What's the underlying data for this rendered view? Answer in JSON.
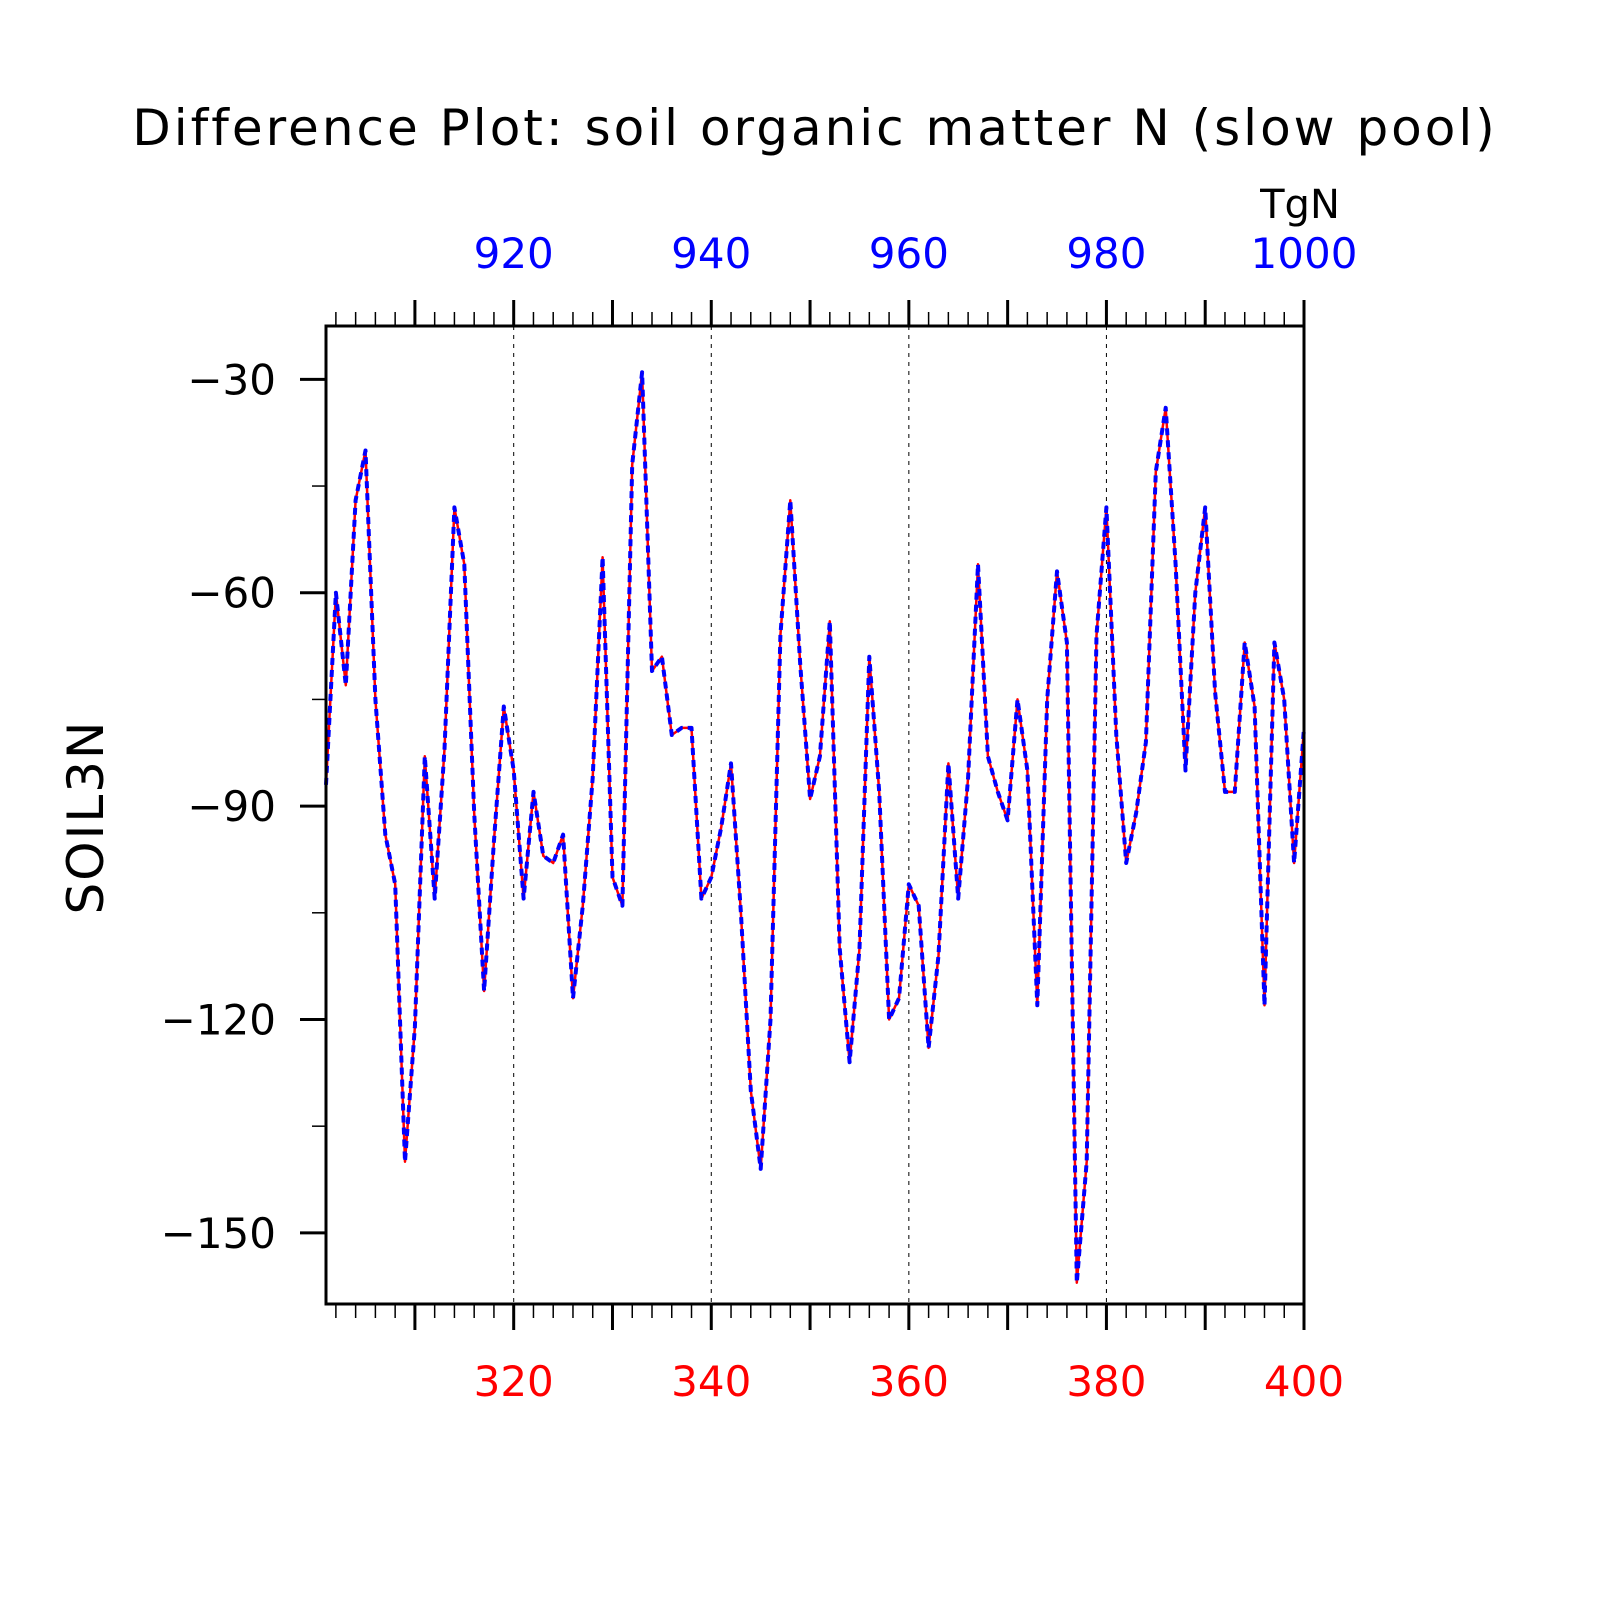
{
  "chart_data": {
    "type": "line",
    "title": "Difference Plot: soil organic matter N (slow pool)",
    "units": "TgN",
    "ylabel": "SOIL3N",
    "xlabel": "",
    "xlim": [
      301,
      400
    ],
    "ylim": [
      -160,
      -22.5
    ],
    "top_xlim": [
      901,
      1000
    ],
    "yticks": [
      -30,
      -60,
      -90,
      -120,
      -150
    ],
    "ytick_labels": [
      "−30",
      "−60",
      "−90",
      "−120",
      "−150"
    ],
    "xticks": [
      320,
      340,
      360,
      380,
      400
    ],
    "xtick_labels": [
      "320",
      "340",
      "360",
      "380",
      "400"
    ],
    "top_xticks": [
      920,
      940,
      960,
      980,
      1000
    ],
    "top_xtick_labels": [
      "920",
      "940",
      "960",
      "980",
      "1000"
    ],
    "grid": "vertical dashed at major x ticks",
    "colors": {
      "bottom_axis": "#ff0000",
      "top_axis": "#0000ff",
      "series_solid": "#ff0000",
      "series_dashed": "#0000ff"
    },
    "x": [
      301,
      302,
      303,
      304,
      305,
      306,
      307,
      308,
      309,
      310,
      311,
      312,
      313,
      314,
      315,
      316,
      317,
      318,
      319,
      320,
      321,
      322,
      323,
      324,
      325,
      326,
      327,
      328,
      329,
      330,
      331,
      332,
      333,
      334,
      335,
      336,
      337,
      338,
      339,
      340,
      341,
      342,
      343,
      344,
      345,
      346,
      347,
      348,
      349,
      350,
      351,
      352,
      353,
      354,
      355,
      356,
      357,
      358,
      359,
      360,
      361,
      362,
      363,
      364,
      365,
      366,
      367,
      368,
      369,
      370,
      371,
      372,
      373,
      374,
      375,
      376,
      377,
      378,
      379,
      380,
      381,
      382,
      383,
      384,
      385,
      386,
      387,
      388,
      389,
      390,
      391,
      392,
      393,
      394,
      395,
      396,
      397,
      398,
      399,
      400
    ],
    "series": [
      {
        "values": [
          -87,
          -60,
          -73,
          -47,
          -40,
          -75,
          -94,
          -101,
          -140,
          -121,
          -83,
          -103,
          -82,
          -48,
          -56,
          -91,
          -116,
          -95,
          -76,
          -85,
          -103,
          -88,
          -97,
          -98,
          -94,
          -117,
          -104,
          -86,
          -55,
          -100,
          -104,
          -42,
          -29,
          -71,
          -69,
          -80,
          -79,
          -79,
          -103,
          -100,
          -93,
          -84,
          -105,
          -130,
          -141,
          -120,
          -66,
          -47,
          -70,
          -89,
          -83,
          -64,
          -110,
          -126,
          -110,
          -69,
          -88,
          -120,
          -117,
          -101,
          -104,
          -124,
          -111,
          -84,
          -103,
          -86,
          -56,
          -83,
          -88,
          -92,
          -75,
          -85,
          -118,
          -75,
          -57,
          -67,
          -157,
          -140,
          -66,
          -48,
          -80,
          -98,
          -91,
          -81,
          -43,
          -34,
          -56,
          -85,
          -60,
          -48,
          -74,
          -88,
          -88,
          -67,
          -76,
          -118,
          -67,
          -75,
          -98,
          -79
        ]
      }
    ]
  }
}
